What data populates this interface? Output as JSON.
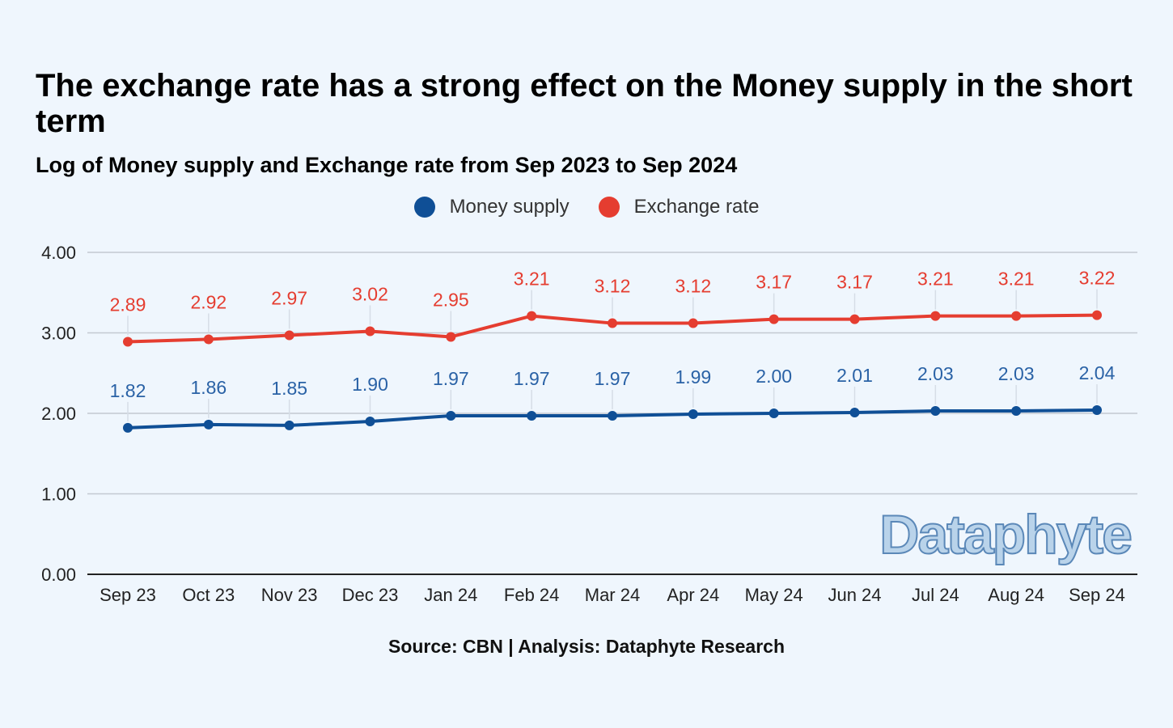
{
  "chart_data": {
    "type": "line",
    "title": "The exchange rate has a strong effect on the Money supply in the short term",
    "subtitle": "Log of Money supply and Exchange rate from Sep 2023 to Sep 2024",
    "categories": [
      "Sep 23",
      "Oct 23",
      "Nov 23",
      "Dec 23",
      "Jan 24",
      "Feb 24",
      "Mar 24",
      "Apr 24",
      "May 24",
      "Jun 24",
      "Jul 24",
      "Aug 24",
      "Sep 24"
    ],
    "series": [
      {
        "name": "Money supply",
        "color": "#0f4f96",
        "label_color": "#2a62a6",
        "values": [
          1.82,
          1.86,
          1.85,
          1.9,
          1.97,
          1.97,
          1.97,
          1.99,
          2.0,
          2.01,
          2.03,
          2.03,
          2.04
        ],
        "labels": [
          "1.82",
          "1.86",
          "1.85",
          "1.90",
          "1.97",
          "1.97",
          "1.97",
          "1.99",
          "2.00",
          "2.01",
          "2.03",
          "2.03",
          "2.04"
        ]
      },
      {
        "name": "Exchange rate",
        "color": "#e53d30",
        "label_color": "#e53d30",
        "values": [
          2.89,
          2.92,
          2.97,
          3.02,
          2.95,
          3.21,
          3.12,
          3.12,
          3.17,
          3.17,
          3.21,
          3.21,
          3.22
        ],
        "labels": [
          "2.89",
          "2.92",
          "2.97",
          "3.02",
          "2.95",
          "3.21",
          "3.12",
          "3.12",
          "3.17",
          "3.17",
          "3.21",
          "3.21",
          "3.22"
        ]
      }
    ],
    "ylim": [
      0,
      4
    ],
    "yticks": [
      "0.00",
      "1.00",
      "2.00",
      "3.00",
      "4.00"
    ],
    "xlabel": "",
    "ylabel": "",
    "grid": true,
    "legend": "top-center",
    "source": "Source: CBN | Analysis: Dataphyte Research",
    "watermark": "Dataphyte"
  }
}
